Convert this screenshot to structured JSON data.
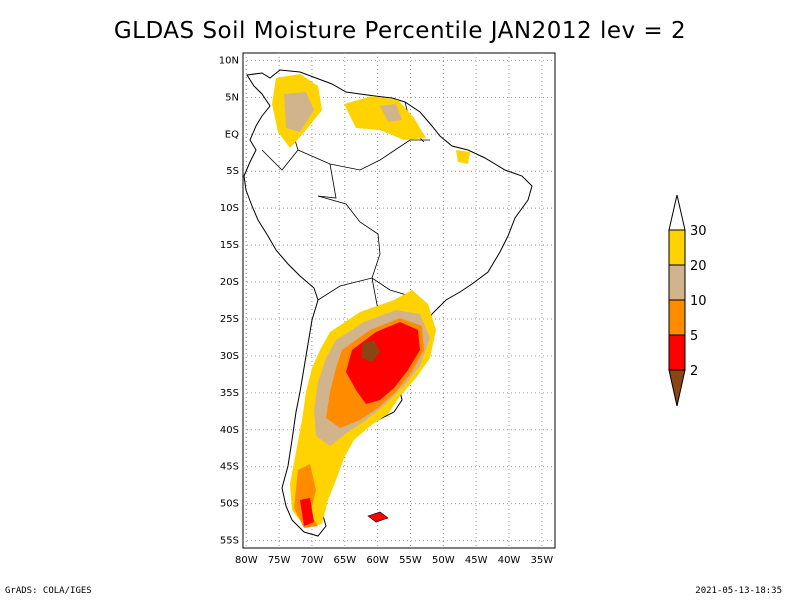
{
  "title": "GLDAS Soil Moisture Percentile JAN2012 lev = 2",
  "map": {
    "lat_labels": [
      "10N",
      "5N",
      "EQ",
      "5S",
      "10S",
      "15S",
      "20S",
      "25S",
      "30S",
      "35S",
      "40S",
      "45S",
      "50S",
      "55S"
    ],
    "lon_labels": [
      "80W",
      "75W",
      "70W",
      "65W",
      "60W",
      "55W",
      "50W",
      "45W",
      "40W",
      "35W"
    ],
    "lon_range": [
      -80.5,
      -33
    ],
    "lat_range": [
      -56,
      11
    ]
  },
  "legend": {
    "labels": [
      "30",
      "20",
      "10",
      "5",
      "2"
    ],
    "colors": {
      "above30": "#ffffff",
      "20_30": "#ffd300",
      "10_20": "#d2b48c",
      "5_10": "#ff8c00",
      "2_5": "#ff0000",
      "below2": "#8b4513"
    }
  },
  "footer": {
    "left": "GrADS: COLA/IGES",
    "right": "2021-05-13-18:35"
  }
}
